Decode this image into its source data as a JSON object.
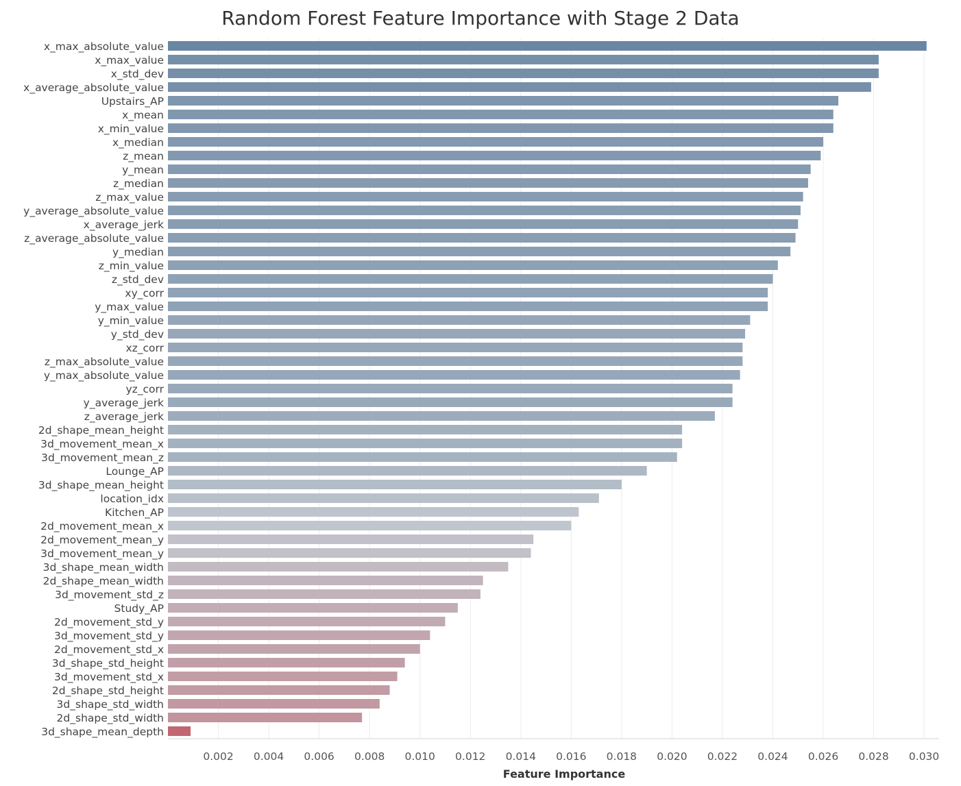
{
  "chart_data": {
    "type": "bar",
    "orientation": "horizontal",
    "title": "Random Forest Feature Importance with Stage 2 Data",
    "xlabel": "Feature Importance",
    "ylabel": "",
    "xlim": [
      0,
      0.0308
    ],
    "xticks": [
      "0.002",
      "0.004",
      "0.006",
      "0.008",
      "0.010",
      "0.012",
      "0.014",
      "0.016",
      "0.018",
      "0.020",
      "0.022",
      "0.024",
      "0.026",
      "0.028",
      "0.030"
    ],
    "grid": "vertical",
    "color_scale": {
      "high": "#6986a3",
      "mid": "#c2c8cf",
      "low": "#c26772"
    },
    "categories": [
      "x_max_absolute_value",
      "x_max_value",
      "x_std_dev",
      "x_average_absolute_value",
      "Upstairs_AP",
      "x_mean",
      "x_min_value",
      "x_median",
      "z_mean",
      "y_mean",
      "z_median",
      "z_max_value",
      "y_average_absolute_value",
      "x_average_jerk",
      "z_average_absolute_value",
      "y_median",
      "z_min_value",
      "z_std_dev",
      "xy_corr",
      "y_max_value",
      "y_min_value",
      "y_std_dev",
      "xz_corr",
      "z_max_absolute_value",
      "y_max_absolute_value",
      "yz_corr",
      "y_average_jerk",
      "z_average_jerk",
      "2d_shape_mean_height",
      "3d_movement_mean_x",
      "3d_movement_mean_z",
      "Lounge_AP",
      "3d_shape_mean_height",
      "location_idx",
      "Kitchen_AP",
      "2d_movement_mean_x",
      "2d_movement_mean_y",
      "3d_movement_mean_y",
      "3d_shape_mean_width",
      "2d_shape_mean_width",
      "3d_movement_std_z",
      "Study_AP",
      "2d_movement_std_y",
      "3d_movement_std_y",
      "2d_movement_std_x",
      "3d_shape_std_height",
      "3d_movement_std_x",
      "2d_shape_std_height",
      "3d_shape_std_width",
      "2d_shape_std_width",
      "3d_shape_mean_depth"
    ],
    "values": [
      0.0301,
      0.0282,
      0.0282,
      0.0279,
      0.0266,
      0.0264,
      0.0264,
      0.026,
      0.0259,
      0.0255,
      0.0254,
      0.0252,
      0.0251,
      0.025,
      0.0249,
      0.0247,
      0.0242,
      0.024,
      0.0238,
      0.0238,
      0.0231,
      0.0229,
      0.0228,
      0.0228,
      0.0227,
      0.0224,
      0.0224,
      0.0217,
      0.0204,
      0.0204,
      0.0202,
      0.019,
      0.018,
      0.0171,
      0.0163,
      0.016,
      0.0145,
      0.0144,
      0.0135,
      0.0125,
      0.0124,
      0.0115,
      0.011,
      0.0104,
      0.01,
      0.0094,
      0.0091,
      0.0088,
      0.0084,
      0.0077,
      0.0009
    ]
  }
}
